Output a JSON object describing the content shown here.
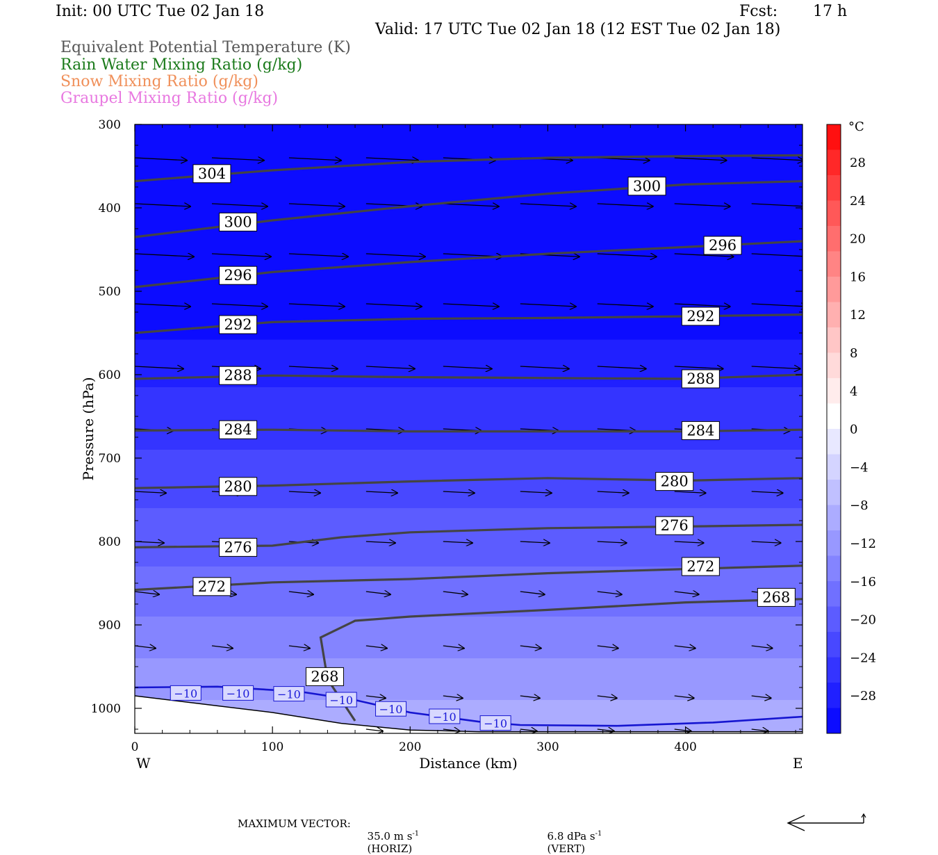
{
  "header": {
    "init": "Init: 00 UTC Tue 02 Jan 18",
    "fcst_label": "Fcst:",
    "fcst_value": "17 h",
    "valid": "Valid: 17 UTC Tue 02 Jan 18 (12 EST Tue 02 Jan 18)"
  },
  "legend_lines": [
    {
      "text": "Equivalent Potential Temperature (K)",
      "color": "#555555"
    },
    {
      "text": "Rain Water Mixing Ratio (g/kg)",
      "color": "#1a7a1a"
    },
    {
      "text": "Snow Mixing Ratio (g/kg)",
      "color": "#f0905a"
    },
    {
      "text": "Graupel Mixing Ratio (g/kg)",
      "color": "#e878e0"
    }
  ],
  "chart_data": {
    "type": "cross-section",
    "xlabel": "Distance (km)",
    "ylabel": "Pressure (hPa)",
    "xlim": [
      0,
      485
    ],
    "ylim": [
      1030,
      300
    ],
    "x_ticks": [
      "0",
      "100",
      "200",
      "300",
      "400"
    ],
    "x_tick_values": [
      0,
      100,
      200,
      300,
      400
    ],
    "y_ticks": [
      "300",
      "400",
      "500",
      "600",
      "700",
      "800",
      "900",
      "1000"
    ],
    "y_tick_values": [
      300,
      400,
      500,
      600,
      700,
      800,
      900,
      1000
    ],
    "west_label": "W",
    "east_label": "E",
    "theta_e_contours": [
      {
        "label": "304",
        "points": [
          [
            0,
            368
          ],
          [
            100,
            355
          ],
          [
            200,
            345
          ],
          [
            300,
            340
          ],
          [
            400,
            338
          ],
          [
            485,
            337
          ]
        ],
        "label_positions": [
          [
            56,
            359
          ]
        ]
      },
      {
        "label": "300",
        "points": [
          [
            0,
            435
          ],
          [
            100,
            415
          ],
          [
            200,
            398
          ],
          [
            300,
            383
          ],
          [
            400,
            372
          ],
          [
            485,
            368
          ]
        ],
        "label_positions": [
          [
            75,
            417
          ],
          [
            372,
            374
          ]
        ]
      },
      {
        "label": "296",
        "points": [
          [
            0,
            495
          ],
          [
            100,
            477
          ],
          [
            200,
            465
          ],
          [
            300,
            455
          ],
          [
            400,
            447
          ],
          [
            485,
            440
          ]
        ],
        "label_positions": [
          [
            75,
            481
          ],
          [
            427,
            445
          ]
        ]
      },
      {
        "label": "292",
        "points": [
          [
            0,
            550
          ],
          [
            100,
            537
          ],
          [
            200,
            533
          ],
          [
            300,
            532
          ],
          [
            400,
            530
          ],
          [
            485,
            528
          ]
        ],
        "label_positions": [
          [
            75,
            540
          ],
          [
            411,
            530
          ]
        ]
      },
      {
        "label": "288",
        "points": [
          [
            0,
            605
          ],
          [
            100,
            601
          ],
          [
            200,
            603
          ],
          [
            300,
            604
          ],
          [
            400,
            605
          ],
          [
            485,
            600
          ]
        ],
        "label_positions": [
          [
            75,
            601
          ],
          [
            411,
            605
          ]
        ]
      },
      {
        "label": "284",
        "points": [
          [
            0,
            667
          ],
          [
            100,
            666
          ],
          [
            200,
            668
          ],
          [
            300,
            668
          ],
          [
            400,
            668
          ],
          [
            485,
            666
          ]
        ],
        "label_positions": [
          [
            75,
            666
          ],
          [
            411,
            667
          ]
        ]
      },
      {
        "label": "280",
        "points": [
          [
            0,
            736
          ],
          [
            100,
            733
          ],
          [
            200,
            728
          ],
          [
            300,
            724
          ],
          [
            400,
            727
          ],
          [
            485,
            724
          ]
        ],
        "label_positions": [
          [
            75,
            734
          ],
          [
            392,
            728
          ]
        ]
      },
      {
        "label": "276",
        "points": [
          [
            0,
            807
          ],
          [
            100,
            805
          ],
          [
            150,
            795
          ],
          [
            200,
            789
          ],
          [
            300,
            784
          ],
          [
            400,
            782
          ],
          [
            485,
            780
          ]
        ],
        "label_positions": [
          [
            75,
            807
          ],
          [
            392,
            781
          ]
        ]
      },
      {
        "label": "272",
        "points": [
          [
            0,
            858
          ],
          [
            100,
            849
          ],
          [
            200,
            845
          ],
          [
            300,
            838
          ],
          [
            400,
            833
          ],
          [
            485,
            829
          ]
        ],
        "label_positions": [
          [
            56,
            854
          ],
          [
            411,
            830
          ]
        ]
      },
      {
        "label": "268",
        "points": [
          [
            160,
            1015
          ],
          [
            140,
            965
          ],
          [
            135,
            915
          ],
          [
            160,
            895
          ],
          [
            200,
            890
          ],
          [
            300,
            882
          ],
          [
            400,
            873
          ],
          [
            485,
            869
          ]
        ],
        "label_positions": [
          [
            138,
            962
          ],
          [
            466,
            867
          ]
        ]
      }
    ],
    "isotherm_minus10": {
      "label": "−10",
      "points": [
        [
          0,
          975
        ],
        [
          60,
          974
        ],
        [
          120,
          980
        ],
        [
          160,
          990
        ],
        [
          200,
          1005
        ],
        [
          250,
          1016
        ],
        [
          280,
          1020
        ],
        [
          350,
          1021
        ],
        [
          420,
          1017
        ],
        [
          485,
          1010
        ]
      ],
      "label_positions": [
        [
          37,
          982
        ],
        [
          75,
          982
        ],
        [
          112,
          983
        ],
        [
          150,
          990
        ],
        [
          186,
          1001
        ],
        [
          225,
          1010
        ],
        [
          262,
          1018
        ]
      ]
    },
    "colorbar": {
      "unit": "°C",
      "tick_labels": [
        "28",
        "24",
        "20",
        "16",
        "12",
        "8",
        "4",
        "0",
        "−4",
        "−8",
        "−12",
        "−16",
        "−20",
        "−24",
        "−28"
      ],
      "colors_top_to_bottom": [
        "#ff1010",
        "#ff2828",
        "#ff4040",
        "#ff5858",
        "#ff6e6e",
        "#ff8484",
        "#ff9a9a",
        "#ffb0b0",
        "#ffc6c6",
        "#ffdada",
        "#ffecec",
        "#ffffff",
        "#e8e8ff",
        "#d4d4ff",
        "#c0c0ff",
        "#acacff",
        "#9898ff",
        "#8484ff",
        "#7070ff",
        "#5c5cff",
        "#4848ff",
        "#3434ff",
        "#2020ff",
        "#0c0cff"
      ]
    },
    "shading_temperature_bands": [
      {
        "top": 300,
        "bottom": 558,
        "color": "#0c0cff"
      },
      {
        "top": 558,
        "bottom": 615,
        "color": "#2020ff"
      },
      {
        "top": 615,
        "bottom": 690,
        "color": "#3434ff"
      },
      {
        "top": 690,
        "bottom": 760,
        "color": "#4848ff"
      },
      {
        "top": 760,
        "bottom": 830,
        "color": "#5c5cff"
      },
      {
        "top": 830,
        "bottom": 890,
        "color": "#7070ff"
      },
      {
        "top": 890,
        "bottom": 940,
        "color": "#8484ff"
      },
      {
        "top": 940,
        "bottom": 990,
        "color": "#9898ff"
      },
      {
        "top": 990,
        "bottom": 1030,
        "color": "#acacff"
      }
    ]
  },
  "footer": {
    "max_vector_label": "MAXIMUM VECTOR:",
    "horiz_value": "35.0 m s",
    "horiz_unit": "(HORIZ)",
    "vert_value": "6.8 dPa s",
    "vert_unit": "(VERT)",
    "exponent": "-1"
  }
}
